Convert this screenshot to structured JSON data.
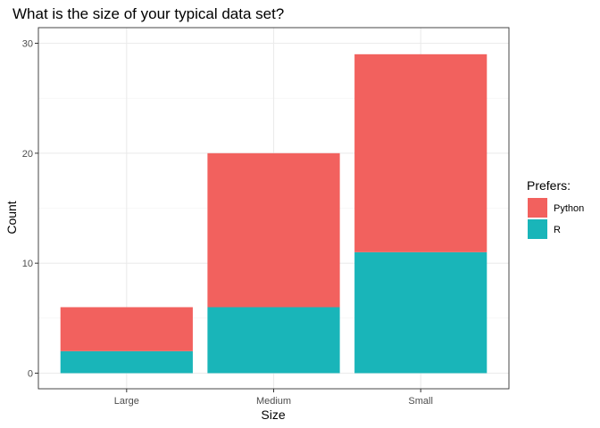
{
  "chart_data": {
    "type": "bar",
    "stacked": true,
    "title": "What is the size of your typical data set?",
    "xlabel": "Size",
    "ylabel": "Count",
    "categories": [
      "Large",
      "Medium",
      "Small"
    ],
    "series": [
      {
        "name": "R",
        "color": "#19b5b9",
        "values": [
          2,
          6,
          11
        ]
      },
      {
        "name": "Python",
        "color": "#f2615e",
        "values": [
          4,
          14,
          18
        ]
      }
    ],
    "ylim": [
      0,
      30
    ],
    "yticks": [
      0,
      10,
      20,
      30
    ],
    "grid": true,
    "legend": {
      "title": "Prefers:",
      "placement": "right",
      "order": [
        "Python",
        "R"
      ]
    }
  }
}
